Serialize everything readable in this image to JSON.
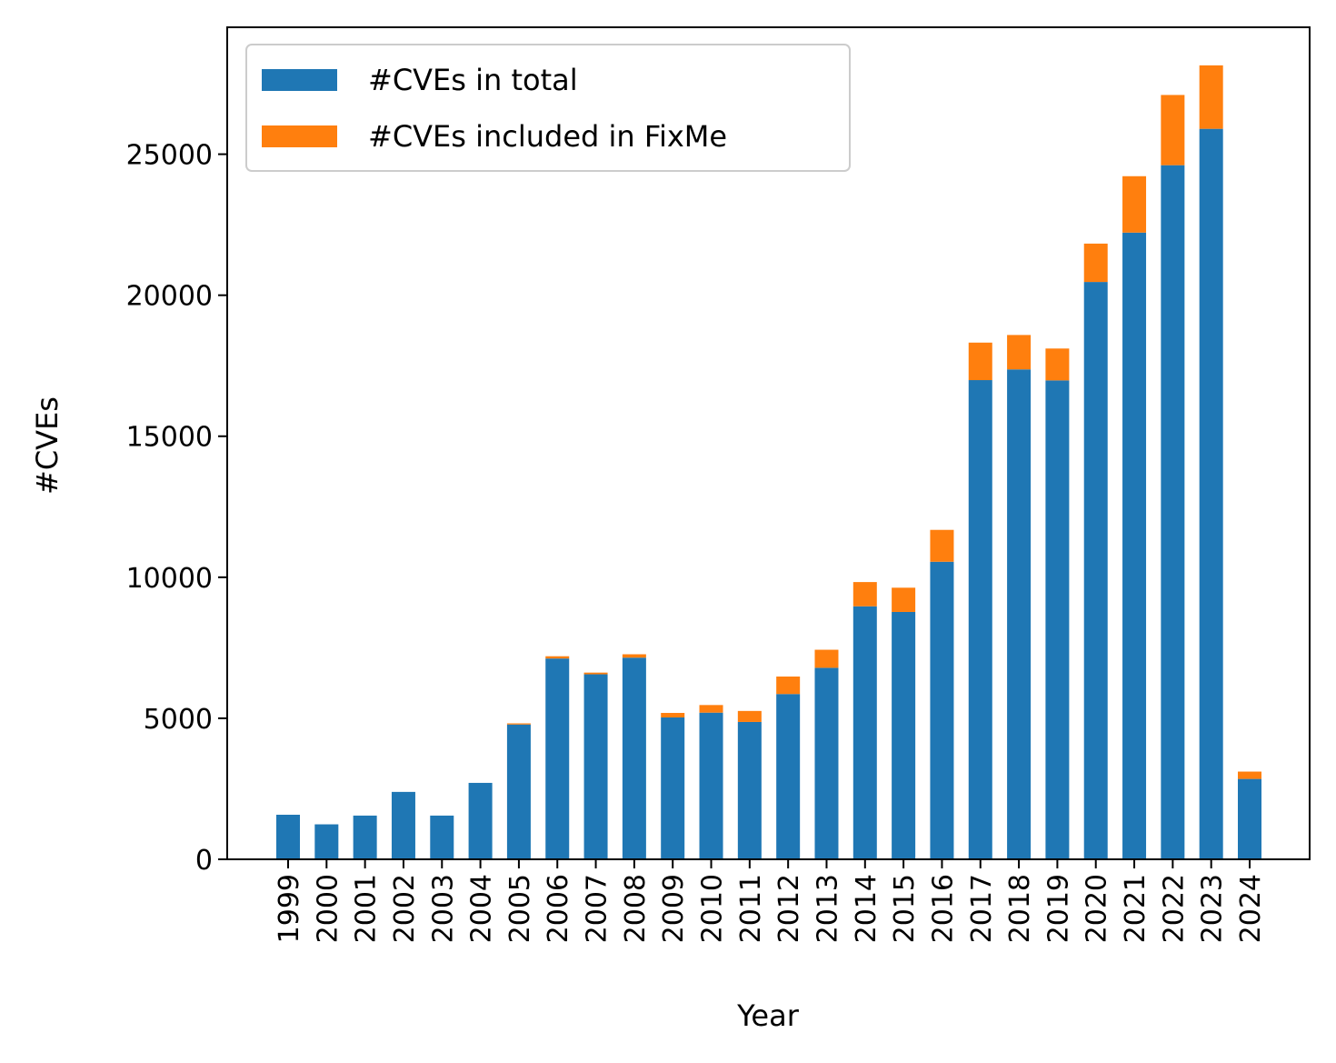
{
  "chart_data": {
    "type": "bar",
    "stacked": true,
    "xlabel": "Year",
    "ylabel": "#CVEs",
    "ylim": [
      0,
      29500
    ],
    "yticks": [
      0,
      5000,
      10000,
      15000,
      20000,
      25000
    ],
    "ytick_labels": [
      "0",
      "5000",
      "10000",
      "15000",
      "20000",
      "25000"
    ],
    "legend": "top-left",
    "grid": false,
    "categories": [
      "1999",
      "2000",
      "2001",
      "2002",
      "2003",
      "2004",
      "2005",
      "2006",
      "2007",
      "2008",
      "2009",
      "2010",
      "2011",
      "2012",
      "2013",
      "2014",
      "2015",
      "2016",
      "2017",
      "2018",
      "2019",
      "2020",
      "2021",
      "2022",
      "2023",
      "2024"
    ],
    "series": [
      {
        "name": "#CVEs in total",
        "color": "#1f77b4",
        "values": [
          1580,
          1240,
          1550,
          2390,
          1550,
          2710,
          4780,
          7120,
          6560,
          7150,
          5030,
          5200,
          4870,
          5860,
          6790,
          8970,
          8770,
          10550,
          16990,
          17370,
          16980,
          20470,
          22220,
          24610,
          25900,
          2850
        ]
      },
      {
        "name": "#CVEs included in FixMe",
        "color": "#ff7f0e",
        "values": [
          0,
          0,
          0,
          0,
          0,
          0,
          40,
          80,
          60,
          120,
          160,
          270,
          390,
          620,
          640,
          860,
          860,
          1130,
          1330,
          1220,
          1130,
          1360,
          2000,
          2490,
          2250,
          260
        ]
      }
    ]
  }
}
